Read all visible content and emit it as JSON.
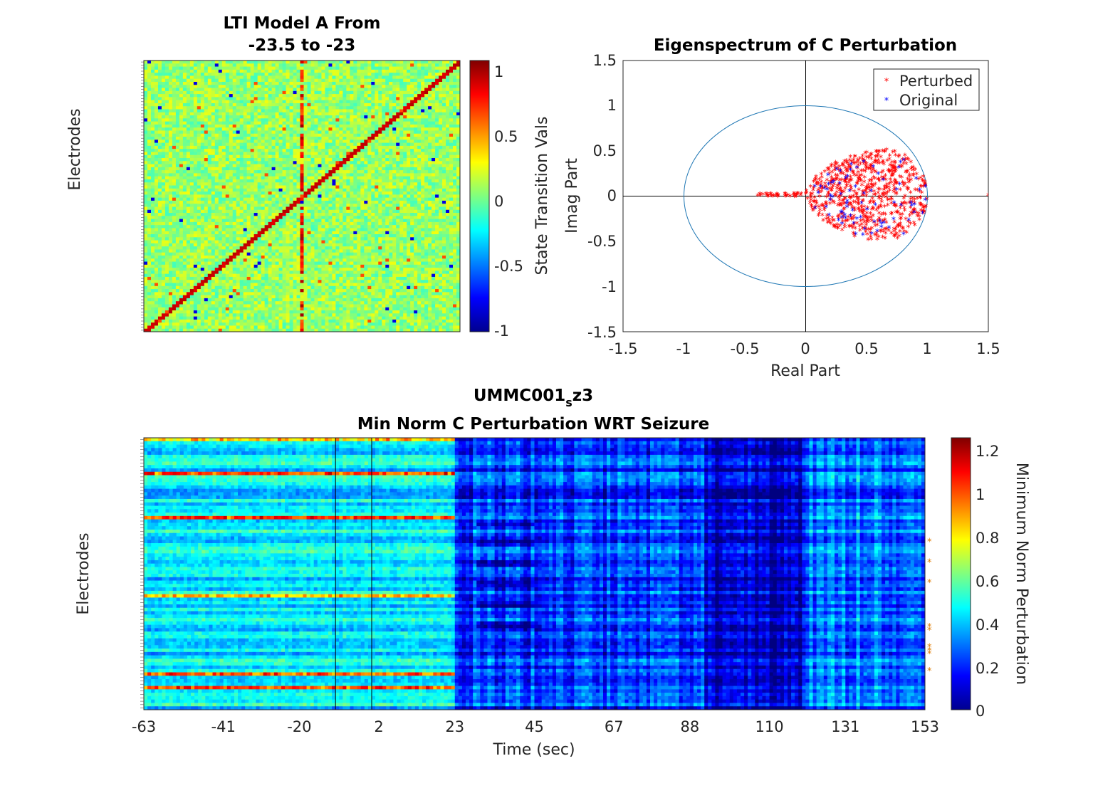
{
  "panel_a": {
    "title_line1": "LTI Model A From",
    "title_line2": "-23.5 to -23",
    "ylabel": "Electrodes",
    "colorbar_label": "State Transition Vals",
    "colorbar_ticks": [
      "1",
      "0.5",
      "0",
      "-0.5",
      "-1"
    ]
  },
  "panel_b": {
    "title": "Eigenspectrum of C Perturbation",
    "xlabel": "Real Part",
    "ylabel": "Imag Part",
    "xticks": [
      "-1.5",
      "-1",
      "-0.5",
      "0",
      "0.5",
      "1",
      "1.5"
    ],
    "yticks": [
      "1.5",
      "1",
      "0.5",
      "0",
      "-0.5",
      "-1",
      "-1.5"
    ],
    "legend": {
      "perturbed": "Perturbed",
      "original": "Original"
    }
  },
  "panel_c": {
    "title_prefix": "UMMC001",
    "title_sub": "s",
    "title_suffix": "z3",
    "title_line2": "Min Norm C Perturbation WRT Seizure",
    "xlabel": "Time (sec)",
    "ylabel": "Electrodes",
    "xticks": [
      "-63",
      "-41",
      "-20",
      "2",
      "23",
      "45",
      "67",
      "88",
      "110",
      "131",
      "153"
    ],
    "colorbar_label": "Minimum Norm Perturbation",
    "colorbar_ticks": [
      "1.2",
      "1",
      "0.8",
      "0.6",
      "0.4",
      "0.2",
      "0"
    ]
  },
  "chart_data": [
    {
      "type": "heatmap",
      "title": "LTI Model A From -23.5 to -23",
      "ylabel": "Electrodes",
      "colorbar_label": "State Transition Vals",
      "clim": [
        -1,
        1
      ],
      "n_electrodes": 89,
      "diagonal_value": 0.9,
      "background_value": 0.0,
      "colormap": "jet"
    },
    {
      "type": "scatter",
      "title": "Eigenspectrum of C Perturbation",
      "xlabel": "Real Part",
      "ylabel": "Imag Part",
      "xlim": [
        -1.5,
        1.5
      ],
      "ylim": [
        -1.5,
        1.5
      ],
      "unit_circle": true,
      "legend_position": "top-right",
      "series": [
        {
          "name": "Perturbed",
          "color": "#ff0000",
          "marker": "*"
        },
        {
          "name": "Original",
          "color": "#0000ff",
          "marker": "*"
        }
      ]
    },
    {
      "type": "heatmap",
      "title": "UMMC001_s z3 Min Norm C Perturbation WRT Seizure",
      "xlabel": "Time (sec)",
      "ylabel": "Electrodes",
      "xlim": [
        -63,
        153
      ],
      "x_ticks": [
        -63,
        -41,
        -20,
        2,
        23,
        45,
        67,
        88,
        110,
        131,
        153
      ],
      "colorbar_label": "Minimum Norm Perturbation",
      "clim": [
        0,
        1.25
      ],
      "vertical_markers": [
        -10,
        0
      ],
      "colormap": "jet"
    }
  ]
}
